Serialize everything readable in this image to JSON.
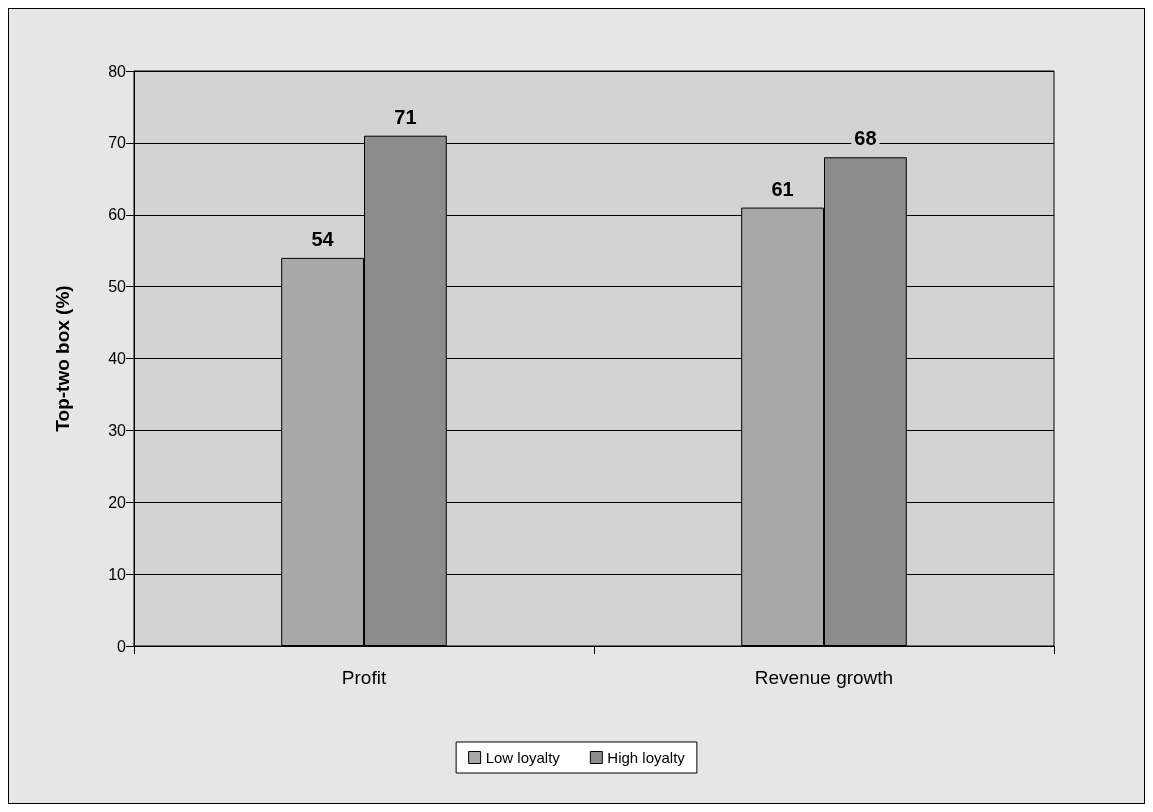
{
  "chart_data": {
    "type": "bar",
    "ylabel": "Top-two box (%)",
    "categories": [
      "Profit",
      "Revenue growth"
    ],
    "series": [
      {
        "name": "Low loyalty",
        "color": "#a9a9a9",
        "values": [
          54,
          61
        ]
      },
      {
        "name": "High loyalty",
        "color": "#8c8c8c",
        "values": [
          71,
          68
        ]
      }
    ],
    "ylim": [
      0,
      80
    ],
    "yticks": [
      0,
      10,
      20,
      30,
      40,
      50,
      60,
      70,
      80
    ],
    "grid": "y",
    "legend": "bottom",
    "data_labels": true
  }
}
